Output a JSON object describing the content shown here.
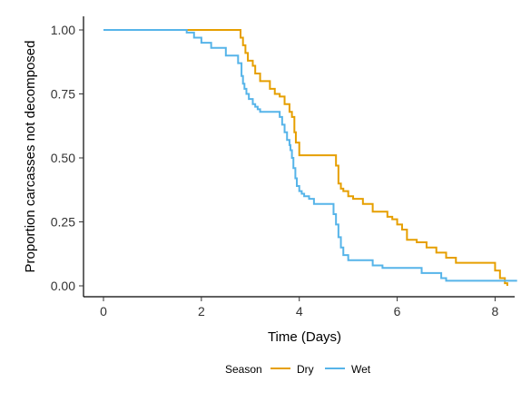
{
  "chart_data": {
    "type": "line",
    "subtype": "step",
    "title": "",
    "xlabel": "Time (Days)",
    "ylabel": "Proportion carcasses not decomposed",
    "xlim": [
      0,
      8.4
    ],
    "ylim": [
      0,
      1.0
    ],
    "xticks": [
      0,
      2,
      4,
      6,
      8
    ],
    "xtick_labels": [
      "0",
      "2",
      "4",
      "6",
      "8"
    ],
    "yticks": [
      0,
      0.25,
      0.5,
      0.75,
      1.0
    ],
    "ytick_labels": [
      "0.00",
      "0.25",
      "0.50",
      "0.75",
      "1.00"
    ],
    "grid": false,
    "legend": {
      "title": "Season",
      "placement": "bottom"
    },
    "series": [
      {
        "name": "Dry",
        "color": "#E69F00",
        "x": [
          0,
          2.8,
          2.85,
          2.9,
          2.95,
          3.05,
          3.1,
          3.2,
          3.4,
          3.5,
          3.6,
          3.7,
          3.8,
          3.85,
          3.9,
          3.93,
          4.0,
          4.5,
          4.75,
          4.8,
          4.85,
          4.9,
          5.0,
          5.1,
          5.3,
          5.5,
          5.8,
          5.9,
          6.0,
          6.1,
          6.2,
          6.4,
          6.6,
          6.8,
          7.0,
          7.2,
          7.5,
          8.0,
          8.1,
          8.2,
          8.25
        ],
        "y": [
          1.0,
          0.97,
          0.94,
          0.91,
          0.88,
          0.86,
          0.83,
          0.8,
          0.77,
          0.75,
          0.74,
          0.71,
          0.68,
          0.66,
          0.6,
          0.56,
          0.51,
          0.51,
          0.47,
          0.4,
          0.38,
          0.37,
          0.35,
          0.34,
          0.32,
          0.29,
          0.27,
          0.26,
          0.24,
          0.22,
          0.18,
          0.17,
          0.15,
          0.13,
          0.11,
          0.09,
          0.09,
          0.06,
          0.03,
          0.01,
          0.0
        ]
      },
      {
        "name": "Wet",
        "color": "#56B4E9",
        "x": [
          0,
          1.7,
          1.85,
          2.0,
          2.2,
          2.5,
          2.75,
          2.82,
          2.85,
          2.88,
          2.92,
          2.97,
          3.05,
          3.1,
          3.15,
          3.2,
          3.6,
          3.65,
          3.7,
          3.75,
          3.8,
          3.82,
          3.85,
          3.88,
          3.92,
          3.95,
          4.0,
          4.05,
          4.1,
          4.2,
          4.3,
          4.7,
          4.75,
          4.8,
          4.85,
          4.9,
          5.0,
          5.1,
          5.5,
          5.7,
          6.5,
          6.9,
          7.0,
          8.45
        ],
        "y": [
          1.0,
          0.99,
          0.97,
          0.95,
          0.93,
          0.9,
          0.87,
          0.82,
          0.79,
          0.77,
          0.75,
          0.73,
          0.71,
          0.7,
          0.69,
          0.68,
          0.66,
          0.63,
          0.6,
          0.57,
          0.55,
          0.53,
          0.5,
          0.46,
          0.42,
          0.39,
          0.37,
          0.36,
          0.35,
          0.34,
          0.32,
          0.28,
          0.24,
          0.19,
          0.15,
          0.12,
          0.1,
          0.1,
          0.08,
          0.07,
          0.05,
          0.03,
          0.02,
          0.02
        ]
      }
    ]
  }
}
